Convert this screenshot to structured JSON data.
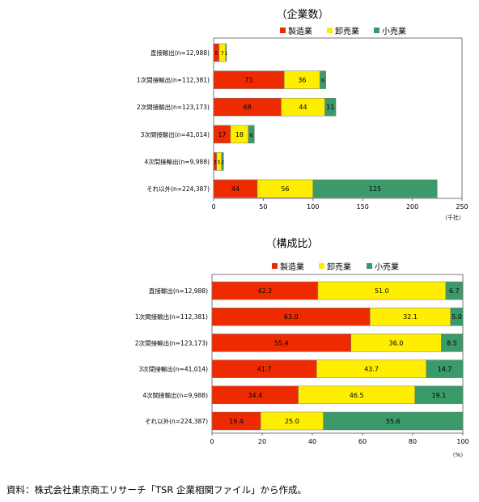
{
  "colors": {
    "manufacturing": "#ee2b00",
    "wholesale": "#ffee00",
    "retail": "#3a9a6a"
  },
  "chart_data": [
    {
      "type": "bar",
      "orientation": "horizontal",
      "stacked": true,
      "title": "（企業数）",
      "unit": "（千社）",
      "xlim": [
        0,
        250
      ],
      "xticks": [
        0,
        50,
        100,
        150,
        200,
        250
      ],
      "categories": [
        "直接輸出(n=12,988)",
        "1次間接輸出(n=112,381)",
        "2次間接輸出(n=123,173)",
        "3次間接輸出(n=41,014)",
        "4次間接輸出(n=9,988)",
        "それ以外(n=224,387)"
      ],
      "series": [
        {
          "name": "製造業",
          "values": [
            5.5,
            71,
            68,
            17,
            3,
            44
          ],
          "labels": [
            "5",
            "71",
            "68",
            "17",
            "3",
            "44"
          ]
        },
        {
          "name": "卸売業",
          "values": [
            6.6,
            36,
            44,
            18,
            5,
            56
          ],
          "labels": [
            "7",
            "36",
            "44",
            "18",
            "5",
            "56"
          ]
        },
        {
          "name": "小売業",
          "values": [
            0.9,
            6,
            11,
            6,
            2,
            125
          ],
          "labels": [
            "1",
            "6",
            "11",
            "6",
            "2",
            "125"
          ]
        }
      ],
      "legend": "top-right",
      "grid": false
    },
    {
      "type": "bar",
      "orientation": "horizontal",
      "stacked": true,
      "title": "（構成比）",
      "unit": "（%）",
      "xlim": [
        0,
        100
      ],
      "xticks": [
        0,
        20,
        40,
        60,
        80,
        100
      ],
      "categories": [
        "直接輸出(n=12,988)",
        "1次間接輸出(n=112,381)",
        "2次間接輸出(n=123,173)",
        "3次間接輸出(n=41,014)",
        "4次間接輸出(n=9,988)",
        "それ以外(n=224,387)"
      ],
      "series": [
        {
          "name": "製造業",
          "values": [
            42.2,
            63.0,
            55.4,
            41.7,
            34.4,
            19.4
          ],
          "labels": [
            "42.2",
            "63.0",
            "55.4",
            "41.7",
            "34.4",
            "19.4"
          ]
        },
        {
          "name": "卸売業",
          "values": [
            51.0,
            32.1,
            36.0,
            43.7,
            46.5,
            25.0
          ],
          "labels": [
            "51.0",
            "32.1",
            "36.0",
            "43.7",
            "46.5",
            "25.0"
          ]
        },
        {
          "name": "小売業",
          "values": [
            6.7,
            5.0,
            8.5,
            14.7,
            19.1,
            55.6
          ],
          "labels": [
            "6.7",
            "5.0",
            "8.5",
            "14.7",
            "19.1",
            "55.6"
          ]
        }
      ],
      "legend": "top-right",
      "grid": false
    }
  ],
  "source": "資料：株式会社東京商工リサーチ「TSR 企業相関ファイル」から作成。"
}
